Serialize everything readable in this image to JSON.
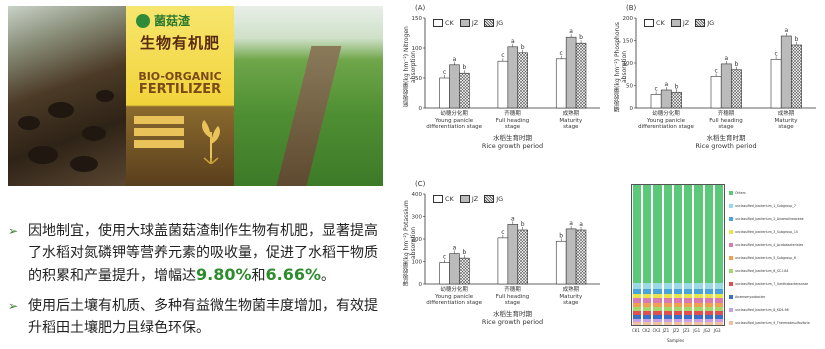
{
  "photos": {
    "bag": {
      "brand": "菌菇渣",
      "title_cn": "生物有机肥",
      "title_en_1": "BIO-ORGANIC",
      "title_en_2": "FERTILIZER"
    }
  },
  "bullets": [
    {
      "parts": [
        "因地制宜，使用大球盖菌菇渣制作生物有机肥，显著提高了水稻对氮磷钾等营养元素的吸收量，促进了水稻干物质的积累和产量提升，增幅达",
        "9.80%",
        "和",
        "6.66%",
        "。"
      ]
    },
    {
      "parts": [
        "使用后土壤有机质、多种有益微生物菌丰度增加，有效提升稻田土壤肥力且绿色环保。"
      ]
    }
  ],
  "legend": [
    "CK",
    "JZ",
    "JG"
  ],
  "stage_labels": [
    {
      "cn": "幼穗分化期",
      "en1": "Young panicle",
      "en2": "differentiation stage"
    },
    {
      "cn": "齐穗期",
      "en1": "Full heading",
      "en2": "stage"
    },
    {
      "cn": "成熟期",
      "en1": "Maturity",
      "en2": "stage"
    }
  ],
  "x_title_cn": "水稻生育时期",
  "x_title_en": "Rice growth period",
  "chart_data": [
    {
      "type": "bar",
      "panel": "(A)",
      "ylabel_cn": "氮吸收量(kg hm⁻²)",
      "ylabel_en": "Nitrogen absorption",
      "ylim": [
        0,
        150
      ],
      "yticks": [
        0,
        50,
        100,
        150
      ],
      "categories": [
        "幼穗分化期",
        "齐穗期",
        "成熟期"
      ],
      "series": [
        {
          "name": "CK",
          "values": [
            50,
            78,
            82
          ]
        },
        {
          "name": "JZ",
          "values": [
            72,
            102,
            118
          ]
        },
        {
          "name": "JG",
          "values": [
            58,
            92,
            108
          ]
        }
      ],
      "letters": [
        [
          "c",
          "a",
          "b"
        ],
        [
          "c",
          "a",
          "b"
        ],
        [
          "c",
          "a",
          "b"
        ]
      ]
    },
    {
      "type": "bar",
      "panel": "(B)",
      "ylabel_cn": "磷吸收量(kg hm⁻²)",
      "ylabel_en": "Phosphorus absorption",
      "ylim": [
        0,
        200
      ],
      "yticks": [
        0,
        50,
        100,
        150,
        200
      ],
      "categories": [
        "幼穗分化期",
        "齐穗期",
        "成熟期"
      ],
      "series": [
        {
          "name": "CK",
          "values": [
            30,
            70,
            108
          ]
        },
        {
          "name": "JZ",
          "values": [
            40,
            98,
            160
          ]
        },
        {
          "name": "JG",
          "values": [
            35,
            85,
            140
          ]
        }
      ],
      "letters": [
        [
          "c",
          "a",
          "b"
        ],
        [
          "c",
          "a",
          "b"
        ],
        [
          "c",
          "a",
          "b"
        ]
      ]
    },
    {
      "type": "bar",
      "panel": "(C)",
      "ylabel_cn": "钾吸收量(kg hm⁻²)",
      "ylabel_en": "Potassium absorption",
      "ylim": [
        0,
        400
      ],
      "yticks": [
        0,
        100,
        200,
        300,
        400
      ],
      "categories": [
        "幼穗分化期",
        "齐穗期",
        "成熟期"
      ],
      "series": [
        {
          "name": "CK",
          "values": [
            95,
            205,
            190
          ]
        },
        {
          "name": "JZ",
          "values": [
            135,
            265,
            245
          ]
        },
        {
          "name": "JG",
          "values": [
            115,
            240,
            240
          ]
        }
      ],
      "letters": [
        [
          "c",
          "a",
          "b"
        ],
        [
          "c",
          "a",
          "b"
        ],
        [
          "b",
          "a",
          "a"
        ]
      ]
    },
    {
      "type": "stacked-bar",
      "categories": [
        "CK1",
        "CK2",
        "CK3",
        "JZ1",
        "JZ2",
        "JZ3",
        "JG1",
        "JG2",
        "JG3"
      ],
      "xlabel": "Samples",
      "legend": [
        "Others",
        "unclassified_bacterium_1_Subgroup_7",
        "unclassified_bacterium_2_Anaerolineaceae",
        "unclassified_bacterium_3_Subgroup_10",
        "unclassified_bacterium_4_Acidobacteriales",
        "unclassified_bacterium_5_Subgroup_6",
        "unclassified_bacterium_6_SC-I-84",
        "unclassified_bacterium_7_Xanthobacteraceae",
        "Anaeromyxobacter",
        "unclassified_bacterium_8_KD4-96",
        "unclassified_bacterium_9_Thermodesulfovibrio"
      ],
      "colors": [
        "#5cc97a",
        "#9bd9e6",
        "#4aa3d9",
        "#e6e64a",
        "#d97ab3",
        "#f0a050",
        "#a3d96a",
        "#e05050",
        "#3a6fc9",
        "#c9a0e6",
        "#f0c0a0"
      ]
    }
  ]
}
